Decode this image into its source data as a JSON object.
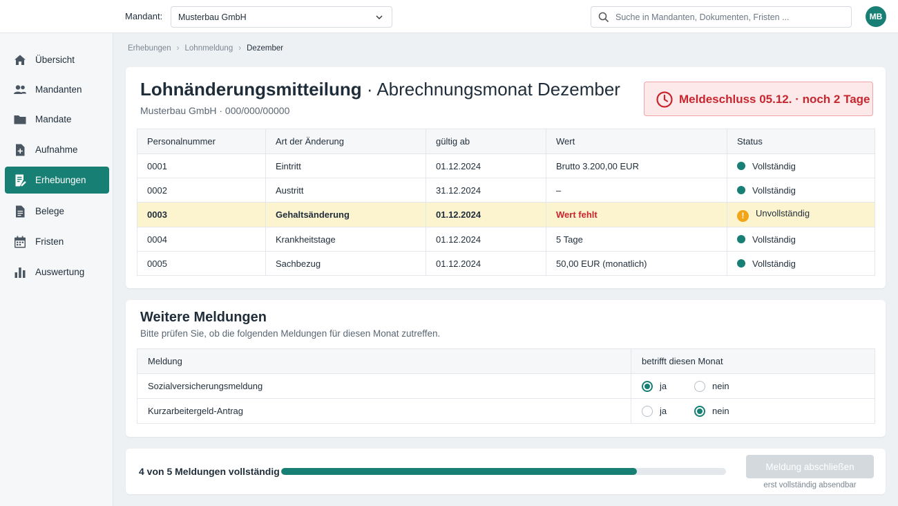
{
  "header": {
    "mandant_label": "Mandant:",
    "mandant_value": "Musterbau GmbH",
    "search_placeholder": "Suche in Mandanten, Dokumenten, Fristen ...",
    "avatar_initials": "MB"
  },
  "sidebar": {
    "items": [
      {
        "label": "Übersicht",
        "icon": "home-icon"
      },
      {
        "label": "Mandanten",
        "icon": "users-icon"
      },
      {
        "label": "Mandate",
        "icon": "folder-icon"
      },
      {
        "label": "Aufnahme",
        "icon": "file-plus-icon"
      },
      {
        "label": "Erhebungen",
        "icon": "form-edit-icon",
        "active": true
      },
      {
        "label": "Belege",
        "icon": "document-icon"
      },
      {
        "label": "Fristen",
        "icon": "calendar-icon"
      },
      {
        "label": "Auswertung",
        "icon": "bar-chart-icon"
      }
    ]
  },
  "breadcrumb": [
    "Erhebungen",
    "Lohnmeldung",
    "Dezember"
  ],
  "main": {
    "title_bold": "Lohnänderungsmitteilung",
    "title_rest": " · Abrechnungsmonat Dezember",
    "subtitle": "Musterbau GmbH · 000/000/00000",
    "deadline": "Meldeschluss 05.12. · noch 2 Tage",
    "changes_table": {
      "headers": [
        "Personalnummer",
        "Art der Änderung",
        "gültig ab",
        "Wert",
        "Status"
      ],
      "rows": [
        {
          "nr": "0001",
          "art": "Eintritt",
          "ab": "01.12.2024",
          "wert": "Brutto 3.200,00 EUR",
          "status": "Vollständig"
        },
        {
          "nr": "0002",
          "art": "Austritt",
          "ab": "31.12.2024",
          "wert": "–",
          "status": "Vollständig"
        },
        {
          "nr": "0003",
          "art": "Gehaltsänderung",
          "ab": "01.12.2024",
          "wert": "Wert fehlt",
          "status": "Unvollständig"
        },
        {
          "nr": "0004",
          "art": "Krankheitstage",
          "ab": "01.12.2024",
          "wert": "5 Tage",
          "status": "Vollständig"
        },
        {
          "nr": "0005",
          "art": "Sachbezug",
          "ab": "01.12.2024",
          "wert": "50,00 EUR (monatlich)",
          "status": "Vollständig"
        }
      ]
    }
  },
  "further": {
    "title": "Weitere Meldungen",
    "subtitle": "Bitte prüfen Sie, ob die folgenden Meldungen für diesen Monat zutreffen.",
    "headers": [
      "Meldung",
      "betrifft diesen Monat"
    ],
    "yes_label": "ja",
    "no_label": "nein",
    "rows": [
      {
        "label": "Sozialversicherungsmeldung",
        "selected": "ja"
      },
      {
        "label": "Kurzarbeitergeld-Antrag",
        "selected": "nein"
      }
    ]
  },
  "footer": {
    "progress_text": "4 von 5 Meldungen vollständig",
    "progress_fraction": 0.8,
    "button_label": "Meldung abschließen",
    "button_hint": "erst vollständig absendbar"
  },
  "colors": {
    "accent": "#177f74",
    "alert": "#c8262e",
    "warning": "#f2a516",
    "warning_row": "#fcf3cf"
  }
}
